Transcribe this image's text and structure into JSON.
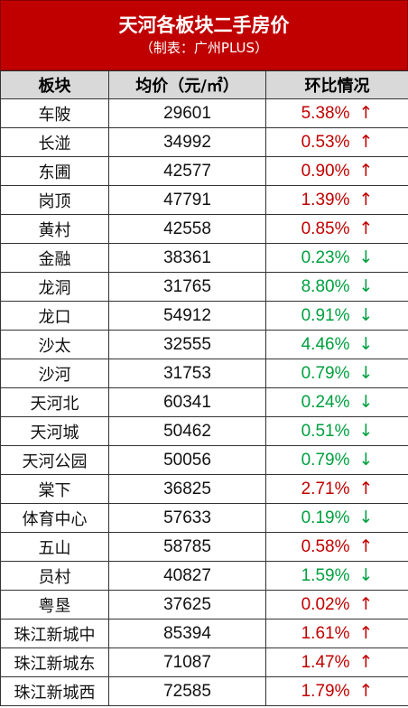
{
  "header": {
    "title": "天河各板块二手房价",
    "subtitle": "（制表：广州PLUS）"
  },
  "columns": [
    "板块",
    "均价（元/㎡）",
    "环比情况"
  ],
  "colors": {
    "up": "#c00000",
    "down": "#00a040",
    "title_bg": "#c00000",
    "header_bg": "#d9d9d9"
  },
  "rows": [
    {
      "name": "车陂",
      "price": "29601",
      "change": "5.38%",
      "dir": "up",
      "arrow": "↑"
    },
    {
      "name": "长湴",
      "price": "34992",
      "change": "0.53%",
      "dir": "up",
      "arrow": "↑"
    },
    {
      "name": "东圃",
      "price": "42577",
      "change": "0.90%",
      "dir": "up",
      "arrow": "↑"
    },
    {
      "name": "岗顶",
      "price": "47791",
      "change": "1.39%",
      "dir": "up",
      "arrow": "↑"
    },
    {
      "name": "黄村",
      "price": "42558",
      "change": "0.85%",
      "dir": "up",
      "arrow": "↑"
    },
    {
      "name": "金融",
      "price": "38361",
      "change": "0.23%",
      "dir": "down",
      "arrow": "↓"
    },
    {
      "name": "龙洞",
      "price": "31765",
      "change": "8.80%",
      "dir": "down",
      "arrow": "↓"
    },
    {
      "name": "龙口",
      "price": "54912",
      "change": "0.91%",
      "dir": "down",
      "arrow": "↓"
    },
    {
      "name": "沙太",
      "price": "32555",
      "change": "4.46%",
      "dir": "down",
      "arrow": "↓"
    },
    {
      "name": "沙河",
      "price": "31753",
      "change": "0.79%",
      "dir": "down",
      "arrow": "↓"
    },
    {
      "name": "天河北",
      "price": "60341",
      "change": "0.24%",
      "dir": "down",
      "arrow": "↓"
    },
    {
      "name": "天河城",
      "price": "50462",
      "change": "0.51%",
      "dir": "down",
      "arrow": "↓"
    },
    {
      "name": "天河公园",
      "price": "50056",
      "change": "0.79%",
      "dir": "down",
      "arrow": "↓"
    },
    {
      "name": "棠下",
      "price": "36825",
      "change": "2.71%",
      "dir": "up",
      "arrow": "↑"
    },
    {
      "name": "体育中心",
      "price": "57633",
      "change": "0.19%",
      "dir": "down",
      "arrow": "↓"
    },
    {
      "name": "五山",
      "price": "58785",
      "change": "0.58%",
      "dir": "up",
      "arrow": "↑"
    },
    {
      "name": "员村",
      "price": "40827",
      "change": "1.59%",
      "dir": "down",
      "arrow": "↓"
    },
    {
      "name": "粤垦",
      "price": "37625",
      "change": "0.02%",
      "dir": "up",
      "arrow": "↑"
    },
    {
      "name": "珠江新城中",
      "price": "85394",
      "change": "1.61%",
      "dir": "up",
      "arrow": "↑"
    },
    {
      "name": "珠江新城东",
      "price": "71087",
      "change": "1.47%",
      "dir": "up",
      "arrow": "↑"
    },
    {
      "name": "珠江新城西",
      "price": "72585",
      "change": "1.79%",
      "dir": "up",
      "arrow": "↑"
    }
  ]
}
